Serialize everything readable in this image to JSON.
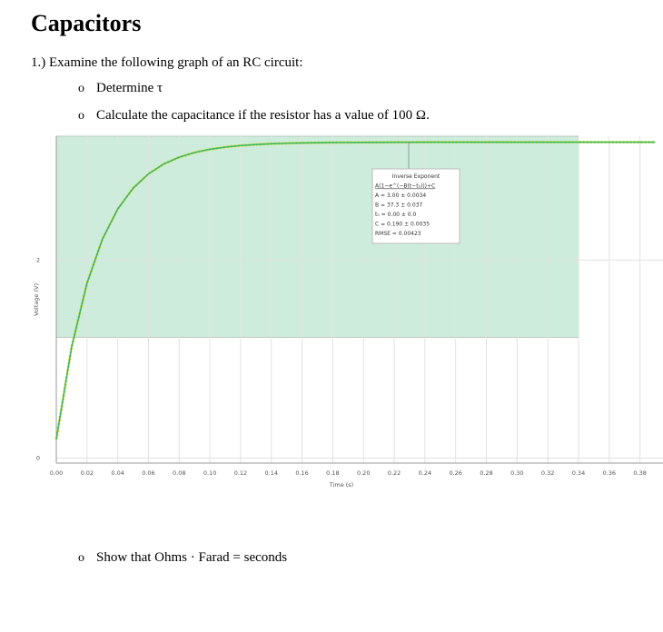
{
  "header": {
    "title": "Capacitors"
  },
  "question": "1.) Examine the following graph of an RC circuit:",
  "bullets": [
    "Determine τ",
    "Calculate the capacitance if the resistor has a value of 100 Ω."
  ],
  "bullet_symbol": "o",
  "final_bullet": "Show that Ohms · Farad = seconds",
  "chart_data": {
    "type": "line",
    "x_label": "Time (s)",
    "y_label": "Voltage (V)",
    "x": [
      0,
      0.01,
      0.02,
      0.03,
      0.04,
      0.05,
      0.06,
      0.07,
      0.08,
      0.09,
      0.1,
      0.11,
      0.12,
      0.13,
      0.14,
      0.15,
      0.16,
      0.18,
      0.2,
      0.22,
      0.24,
      0.26,
      0.28,
      0.3,
      0.32,
      0.34,
      0.36,
      0.38,
      0.39
    ],
    "series": [
      {
        "name": "Inverse Exponent",
        "color": "#3fb56e",
        "values": [
          0.19,
          1.124,
          1.767,
          2.21,
          2.515,
          2.725,
          2.87,
          2.97,
          3.038,
          3.085,
          3.118,
          3.14,
          3.156,
          3.166,
          3.174,
          3.179,
          3.182,
          3.186,
          3.188,
          3.189,
          3.19,
          3.19,
          3.19,
          3.19,
          3.19,
          3.19,
          3.19,
          3.19,
          3.19
        ]
      }
    ],
    "selection": {
      "x": [
        0,
        0.34
      ],
      "y": [
        1.22,
        3.25
      ]
    },
    "xlim": [
      0,
      0.395
    ],
    "ylim": [
      -0.05,
      3.25
    ],
    "xticks": [
      {
        "value": 0,
        "label": "0.00"
      },
      {
        "value": 0.02,
        "label": "0.02"
      },
      {
        "value": 0.04,
        "label": "0.04"
      },
      {
        "value": 0.06,
        "label": "0.06"
      },
      {
        "value": 0.08,
        "label": "0.08"
      },
      {
        "value": 0.1,
        "label": "0.10"
      },
      {
        "value": 0.12,
        "label": "0.12"
      },
      {
        "value": 0.14,
        "label": "0.14"
      },
      {
        "value": 0.16,
        "label": "0.16"
      },
      {
        "value": 0.18,
        "label": "0.18"
      },
      {
        "value": 0.2,
        "label": "0.20"
      },
      {
        "value": 0.22,
        "label": "0.22"
      },
      {
        "value": 0.24,
        "label": "0.24"
      },
      {
        "value": 0.26,
        "label": "0.26"
      },
      {
        "value": 0.28,
        "label": "0.28"
      },
      {
        "value": 0.3,
        "label": "0.30"
      },
      {
        "value": 0.32,
        "label": "0.32"
      },
      {
        "value": 0.34,
        "label": "0.34"
      },
      {
        "value": 0.36,
        "label": "0.36"
      },
      {
        "value": 0.38,
        "label": "0.38"
      }
    ],
    "yticks": [
      0,
      2
    ],
    "grid": true,
    "annotation": [
      "Inverse Exponent",
      "A(1−e^(−B(t−t₀)))+C",
      "A = 3.00  ± 0.0034",
      "B = 37.3  ± 0.037",
      "t₀ = 0.00  ± 0.0",
      "C = 0.190 ± 0.0035",
      "RMSE = 0.00423"
    ]
  }
}
